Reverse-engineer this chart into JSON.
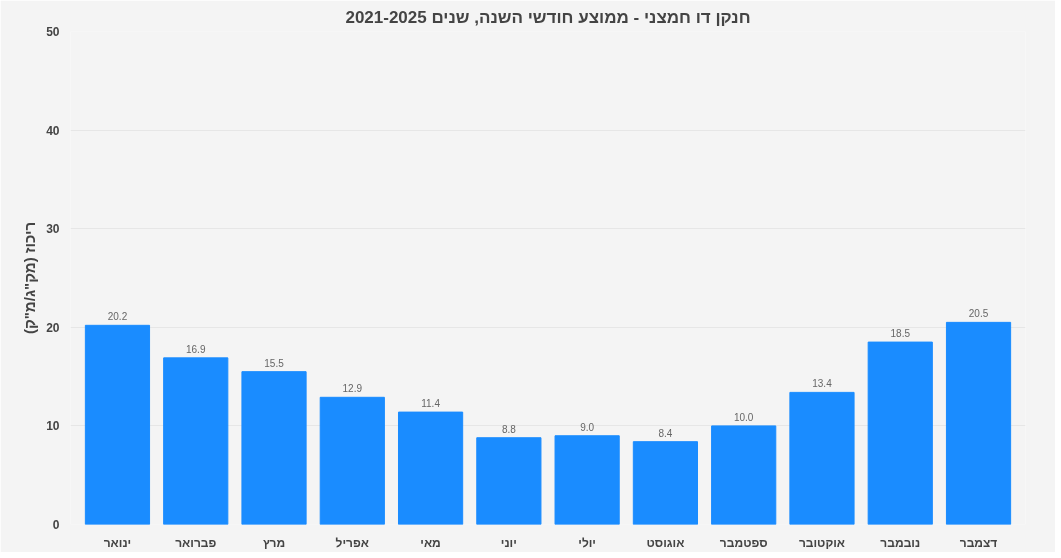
{
  "chart_data": {
    "type": "bar",
    "title": "חנקן דו חמצני - ממוצע חודשי השנה, שנים 2021-2025",
    "ylabel": "ריכוז (מק\"ג/מ\"ק)",
    "categories": [
      "ינואר",
      "פברואר",
      "מרץ",
      "אפריל",
      "מאי",
      "יוני",
      "יולי",
      "אוגוסט",
      "ספטמבר",
      "אוקטובר",
      "נובמבר",
      "דצמבר"
    ],
    "values": [
      20.2,
      16.9,
      15.5,
      12.9,
      11.4,
      8.8,
      9.0,
      8.4,
      10.0,
      13.4,
      18.5,
      20.5
    ],
    "value_labels": [
      "20.2",
      "16.9",
      "15.5",
      "12.9",
      "11.4",
      "8.8",
      "9.0",
      "8.4",
      "10.0",
      "13.4",
      "18.5",
      "20.5"
    ],
    "color": "#1a8cff",
    "ylim": [
      0,
      50
    ],
    "yticks": [
      0,
      10,
      20,
      30,
      40,
      50
    ],
    "grid": "y"
  }
}
